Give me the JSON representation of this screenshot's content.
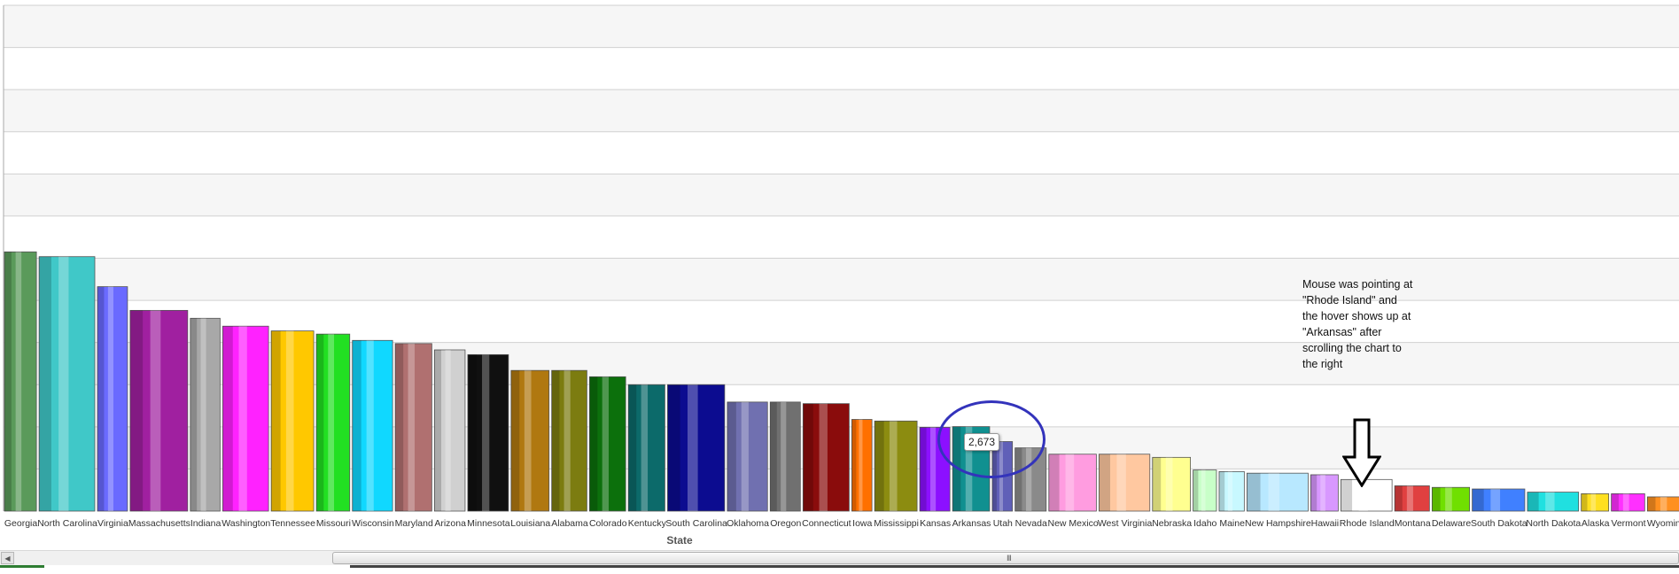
{
  "chart_data": {
    "type": "bar",
    "xlabel": "State",
    "ylabel": "",
    "title": "",
    "ylim": [
      0,
      16000
    ],
    "grid": true,
    "categories": [
      "Georgia",
      "North Carolina",
      "Virginia",
      "Massachusetts",
      "Indiana",
      "Washington",
      "Tennessee",
      "Missouri",
      "Wisconsin",
      "Maryland",
      "Arizona",
      "Minnesota",
      "Louisiana",
      "Alabama",
      "Colorado",
      "Kentucky",
      "South Carolina",
      "Oklahoma",
      "Oregon",
      "Connecticut",
      "Iowa",
      "Mississippi",
      "Kansas",
      "Arkansas",
      "Utah",
      "Nevada",
      "New Mexico",
      "West Virginia",
      "Nebraska",
      "Idaho",
      "Maine",
      "New Hampshire",
      "Hawaii",
      "Rhode Island",
      "Montana",
      "Delaware",
      "South Dakota",
      "North Dakota",
      "Alaska",
      "Vermont",
      "Wyoming"
    ],
    "values": [
      8200,
      8050,
      7100,
      6350,
      6100,
      5850,
      5700,
      5600,
      5400,
      5300,
      5100,
      4950,
      4450,
      4450,
      4250,
      4000,
      4000,
      3450,
      3450,
      3400,
      2900,
      2850,
      2650,
      2673,
      2200,
      2000,
      1800,
      1800,
      1700,
      1300,
      1250,
      1200,
      1150,
      1000,
      800,
      750,
      700,
      600,
      550,
      550,
      450
    ],
    "colors": [
      "#5a9a5a",
      "#40c8c8",
      "#6a6aff",
      "#a020a0",
      "#a8a8a8",
      "#ff22ff",
      "#ffc800",
      "#22e022",
      "#10d8ff",
      "#b07070",
      "#d0d0d0",
      "#101010",
      "#b07810",
      "#7c7c10",
      "#0c700c",
      "#0c6a6a",
      "#0c0c90",
      "#7070b0",
      "#707070",
      "#8a0c0c",
      "#ff7000",
      "#8c8c10",
      "#8c10ff",
      "#109090",
      "#6060b8",
      "#8a8a8a",
      "#ff9ce0",
      "#ffc8a0",
      "#ffff90",
      "#c8ffc8",
      "#c8f8ff",
      "#b8e8ff",
      "#d898ff",
      "#ffffff",
      "#e04040",
      "#70e000",
      "#4080ff",
      "#20e0e0",
      "#ffe020",
      "#ff30ff",
      "#ff9020"
    ]
  },
  "tooltip": {
    "value": "2,673"
  },
  "annotation": {
    "text": "Mouse was pointing at\n\"Rhode Island\" and\nthe hover shows up at\n\"Arkansas\" after\nscrolling the chart to\nthe right"
  },
  "icons": {
    "down_arrow": "down-arrow-icon",
    "scroll_left": "scroll-left-arrow-icon",
    "scroll_grip": "scroll-grip-icon"
  },
  "scrollbar": {
    "grip": "III"
  }
}
